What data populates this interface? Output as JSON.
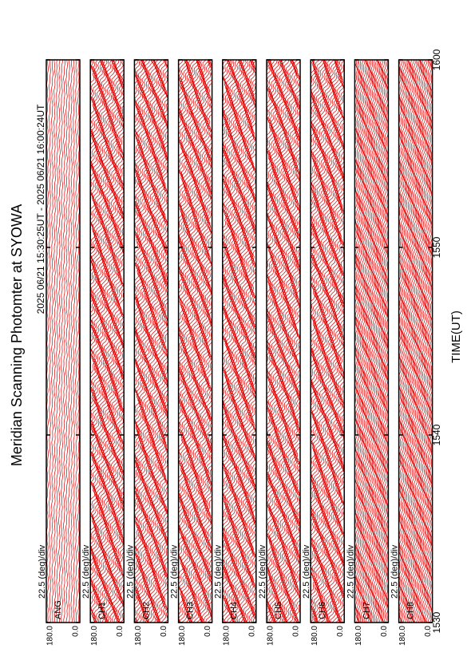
{
  "chart_data": {
    "type": "multi-panel-line",
    "title": "Meridian Scanning Photomter at SYOWA",
    "subtitle": "2025 06/21 15:30:25UT - 2025 06/21 16:00:24UT",
    "x_label": "TIME(UT)",
    "xlim": [
      0,
      30
    ],
    "xticks": [
      {
        "value": 0,
        "label": "1530"
      },
      {
        "value": 10,
        "label": "1540"
      },
      {
        "value": 20,
        "label": "1550"
      },
      {
        "value": 30,
        "label": "1600"
      }
    ],
    "ylim": [
      0,
      180
    ],
    "yticks": [
      {
        "value": 180,
        "label": "180.0"
      },
      {
        "value": 0,
        "label": "0.0"
      }
    ],
    "scale_label": "22.5 (deg)/div",
    "color": "#e00000",
    "panels": [
      "ANG",
      "CH1",
      "CH2",
      "CH3",
      "CH4",
      "CH5",
      "CH6",
      "CH7",
      "CH8"
    ]
  }
}
